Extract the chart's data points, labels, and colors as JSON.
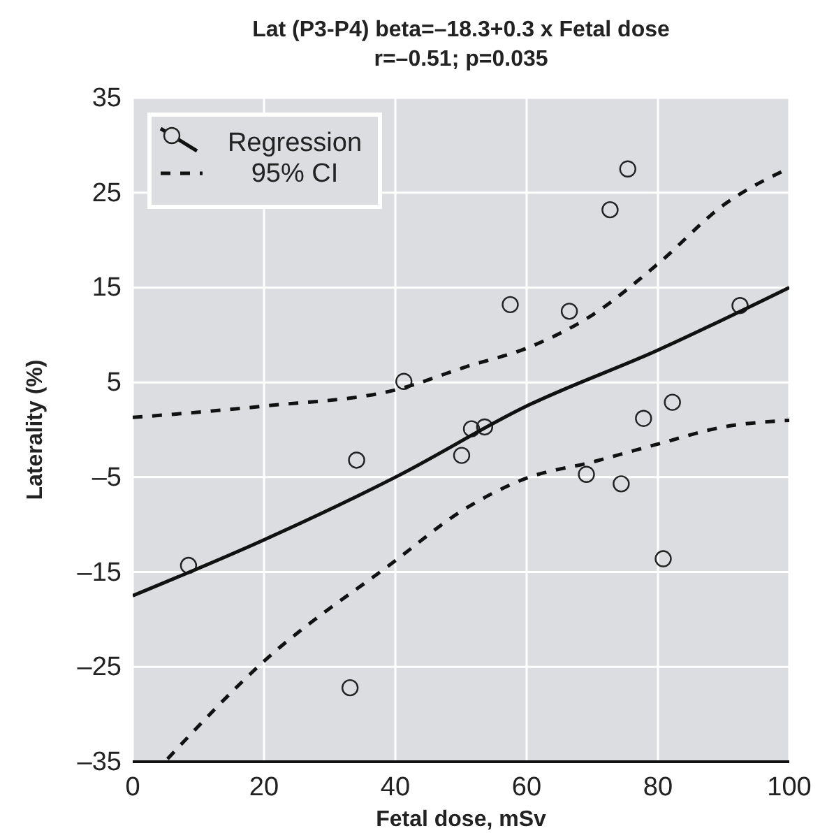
{
  "chart_data": {
    "type": "scatter",
    "title": "Lat (P3-P4) beta=–18.3+0.3 x Fetal dose",
    "subtitle": "r=–0.51; p=0.035",
    "xlabel": "Fetal dose, mSv",
    "ylabel": "Laterality (%)",
    "xlim": [
      0,
      100
    ],
    "xticks": [
      0,
      20,
      40,
      60,
      80,
      100
    ],
    "ylim": [
      -35,
      35
    ],
    "yticks": [
      {
        "value": -35,
        "label": "–35"
      },
      {
        "value": -25,
        "label": "–25"
      },
      {
        "value": -15,
        "label": "–15"
      },
      {
        "value": -5,
        "label": "–5"
      },
      5,
      15,
      25,
      35
    ],
    "grid": true,
    "legend": "top left",
    "marker": "circle",
    "series": [
      {
        "color": "#222222",
        "x": [
          8.5,
          34.1,
          33.1,
          41.3,
          50.1,
          51.6,
          53.6,
          57.5,
          66.5,
          72.7,
          75.4,
          69.1,
          74.4,
          77.8,
          82.2,
          80.8,
          92.5
        ],
        "values": [
          -14.3,
          -3.2,
          -27.2,
          5.1,
          -2.7,
          0.1,
          0.3,
          13.2,
          12.5,
          23.2,
          27.5,
          -4.7,
          -5.7,
          1.2,
          2.9,
          -13.6,
          13.1
        ]
      },
      {
        "type": "line",
        "name": "Regression",
        "color": "#111111",
        "line_style": "solid",
        "marker": "none",
        "x": [
          0,
          20,
          40,
          60,
          80,
          100
        ],
        "values": [
          -17.5,
          -11.6,
          -5.0,
          2.5,
          8.4,
          15
        ]
      },
      {
        "type": "line",
        "name": "95% CI",
        "color": "#111111",
        "line_style": "dashed",
        "marker": "none",
        "x": [
          0,
          20,
          40,
          51,
          60,
          70,
          80,
          90,
          100
        ],
        "values": [
          1.3,
          2.5,
          4.2,
          6.7,
          8.6,
          12.1,
          17.5,
          23.7,
          27.6
        ]
      },
      {
        "type": "line",
        "color": "#111111",
        "line_style": "dashed",
        "marker": "none",
        "x": [
          5.3,
          20,
          40,
          50,
          60,
          70,
          80,
          90,
          100
        ],
        "values": [
          -34.7,
          -24.4,
          -13.8,
          -8.6,
          -5.1,
          -3.4,
          -1.5,
          0.3,
          1.0
        ]
      }
    ]
  }
}
